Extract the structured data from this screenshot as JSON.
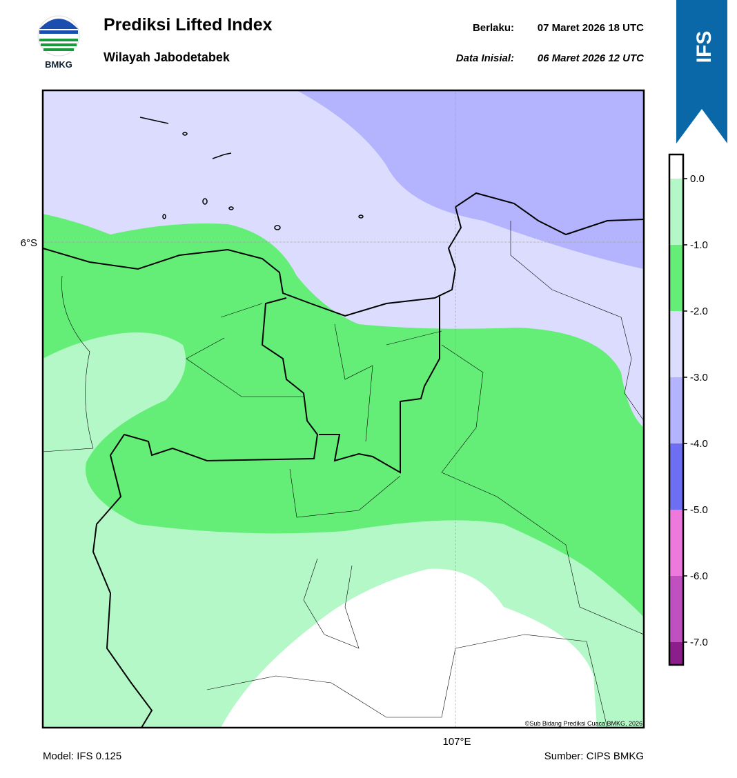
{
  "header": {
    "logo_text": "BMKG",
    "title": "Prediksi Lifted Index",
    "subtitle": "Wilayah Jabodetabek",
    "valid_label": "Berlaku:",
    "valid_date": "07 Maret 2026 18 UTC",
    "init_label": "Data Inisial:",
    "init_date": "06 Maret 2026 12 UTC",
    "badge": "IFS"
  },
  "map": {
    "lat_label": "6°S",
    "lon_label": "107°E",
    "copyright": "©Sub Bidang Prediksi Cuaca BMKG, 2026"
  },
  "colorbar": {
    "ticks": [
      "0.0",
      "-1.0",
      "-2.0",
      "-3.0",
      "-4.0",
      "-5.0",
      "-6.0",
      "-7.0"
    ],
    "colors": [
      "#ffffff",
      "#b4f8c8",
      "#64ee78",
      "#dcdcfe",
      "#b4b4fe",
      "#6e6ef2",
      "#ee78dc",
      "#c050c0",
      "#8c1e8c"
    ]
  },
  "footer": {
    "model": "Model: IFS 0.125",
    "source": "Sumber: CIPS BMKG"
  }
}
